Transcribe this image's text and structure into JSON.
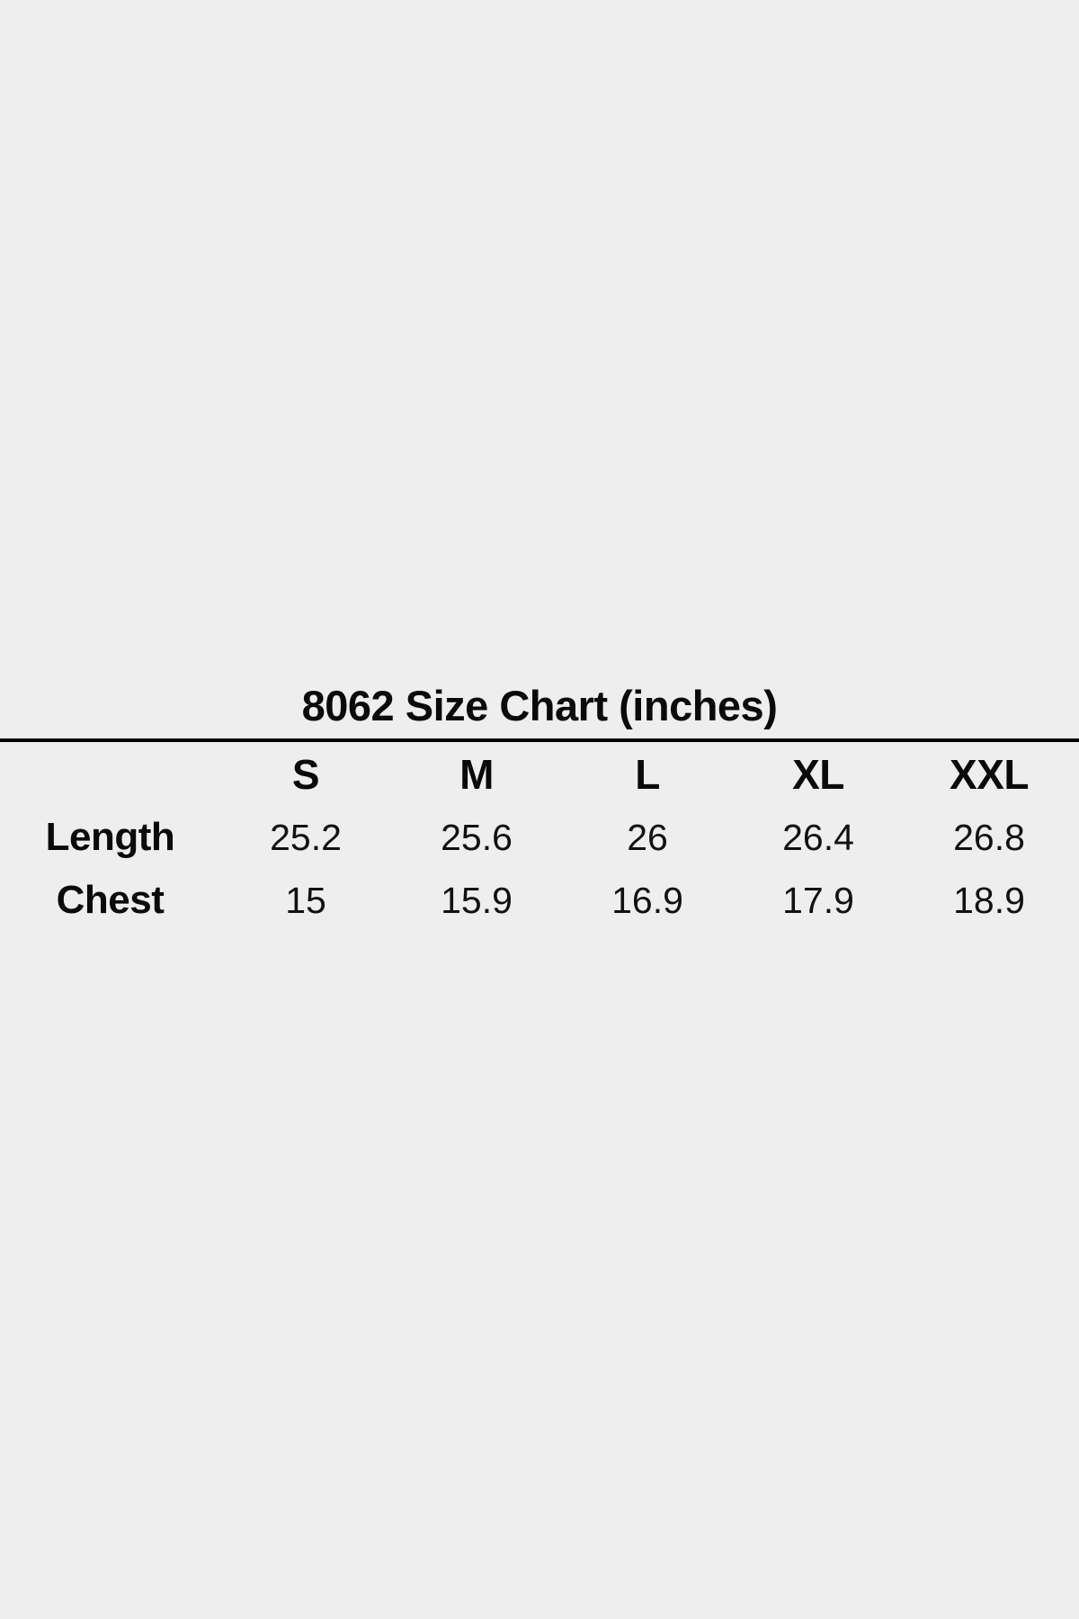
{
  "page": {
    "background_color": "#eeeeee",
    "text_color": "#0a0a0a",
    "divider_color": "#000000"
  },
  "chart_data": {
    "type": "table",
    "title": "8062 Size Chart (inches)",
    "columns": [
      "S",
      "M",
      "L",
      "XL",
      "XXL"
    ],
    "rows": [
      {
        "label": "Length",
        "values": [
          25.2,
          25.6,
          26,
          26.4,
          26.8
        ]
      },
      {
        "label": "Chest",
        "values": [
          15,
          15.9,
          16.9,
          17.9,
          18.9
        ]
      }
    ],
    "layout_hints": {
      "title_position": "top-center",
      "header_row_bold": true,
      "divider_below_title": true
    }
  }
}
